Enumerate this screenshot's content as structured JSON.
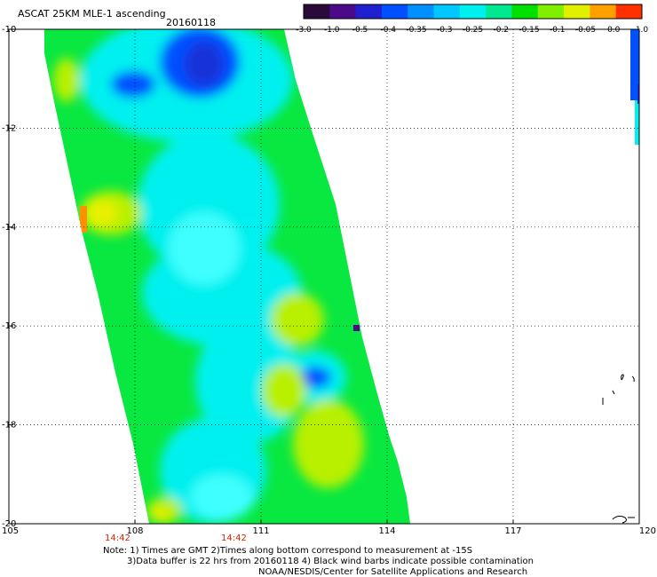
{
  "header": {
    "title": "ASCAT 25KM MLE-1 ascending",
    "date": "20160118"
  },
  "colorbar": {
    "labels": [
      "-3.0",
      "-1.0",
      "-0.5",
      "-0.4",
      "-0.35",
      "-0.3",
      "-0.25",
      "-0.2",
      "-0.15",
      "-0.1",
      "-0.05",
      "0.0",
      "1.0"
    ],
    "colors": [
      "#2a0a3a",
      "#4a0a8a",
      "#2020d0",
      "#0050ff",
      "#0090ff",
      "#00c8ff",
      "#00f0f0",
      "#00e890",
      "#00e000",
      "#80f000",
      "#e0f000",
      "#ffa000",
      "#ff3000"
    ]
  },
  "axes": {
    "lon_labels": [
      "105",
      "108",
      "111",
      "114",
      "117",
      "120"
    ],
    "lat_labels": [
      "-10",
      "-12",
      "-14",
      "-16",
      "-18",
      "-20"
    ],
    "lon_range": [
      105,
      120
    ],
    "lat_range": [
      -20,
      -10
    ]
  },
  "pass_times": [
    "14:42",
    "14:42"
  ],
  "notes": [
    "Note: 1) Times are GMT 2)Times along bottom correspond to measurement at -15S",
    "3)Data buffer is 22 hrs from 20160118 4) Black wind barbs indicate possible contamination",
    "NOAA/NESDIS/Center for Satellite Applications and Research"
  ],
  "palette": {
    "swath_base": "#08e840",
    "cyan": "#00f0f0",
    "light_cyan": "#40ffff",
    "yellow_green": "#b8f000",
    "yellow": "#e8f000",
    "orange": "#ff9000",
    "blue": "#0050ff",
    "dark_blue": "#1830d8",
    "grid": "#000000",
    "time_red": "#cc2200"
  }
}
